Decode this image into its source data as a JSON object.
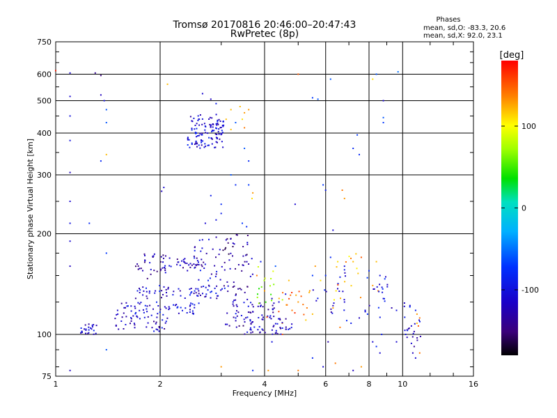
{
  "chart_data": {
    "type": "scatter",
    "title": "Tromsø 20170816 20:46:00–20:47:43",
    "subtitle": "RwPretec (8p)",
    "stats": {
      "heading": "Phases",
      "line1": "mean, sd,O: -83.3, 20.6",
      "line2": "mean, sd,X:  92.0, 23.1"
    },
    "xlabel": "Frequency [MHz]",
    "ylabel": "Stationary phase Virtual Height [km]",
    "x_scale": "log",
    "y_scale": "log",
    "xlim": [
      1,
      16
    ],
    "ylim": [
      75,
      750
    ],
    "x_ticks": [
      1,
      2,
      4,
      6,
      8,
      10,
      16
    ],
    "y_ticks": [
      75,
      100,
      200,
      300,
      400,
      500,
      600,
      750
    ],
    "grid": true,
    "colorbar": {
      "label": "[deg]",
      "range": [
        -180,
        180
      ],
      "ticks": [
        100,
        0,
        -100
      ]
    },
    "series": [
      {
        "name": "echoes",
        "points": [
          [
            1.0,
            615,
            170
          ],
          [
            1.1,
            605,
            -110
          ],
          [
            1.3,
            605,
            -140
          ],
          [
            1.35,
            595,
            -150
          ],
          [
            1.1,
            515,
            -110
          ],
          [
            1.35,
            520,
            -120
          ],
          [
            1.38,
            500,
            -100
          ],
          [
            1.4,
            470,
            -60
          ],
          [
            1.1,
            450,
            -100
          ],
          [
            1.4,
            430,
            -60
          ],
          [
            1.1,
            380,
            -100
          ],
          [
            1.35,
            330,
            -80
          ],
          [
            1.4,
            345,
            120
          ],
          [
            1.1,
            305,
            -120
          ],
          [
            1.1,
            250,
            -110
          ],
          [
            1.1,
            215,
            -100
          ],
          [
            1.1,
            190,
            -110
          ],
          [
            1.1,
            160,
            -120
          ],
          [
            1.25,
            215,
            -80
          ],
          [
            1.4,
            175,
            -70
          ],
          [
            1.4,
            90,
            -60
          ],
          [
            1.1,
            78,
            -120
          ],
          [
            2.1,
            560,
            120
          ],
          [
            2.05,
            275,
            -110
          ],
          [
            2.02,
            268,
            -120
          ],
          [
            2.65,
            525,
            -110
          ],
          [
            2.8,
            505,
            -120
          ],
          [
            2.9,
            490,
            -90
          ],
          [
            3.2,
            470,
            120
          ],
          [
            3.4,
            480,
            120
          ],
          [
            3.5,
            460,
            130
          ],
          [
            3.1,
            440,
            120
          ],
          [
            3.3,
            430,
            -60
          ],
          [
            3.45,
            440,
            110
          ],
          [
            3.6,
            470,
            130
          ],
          [
            3.2,
            410,
            120
          ],
          [
            3.5,
            415,
            140
          ],
          [
            3.5,
            360,
            -60
          ],
          [
            3.6,
            330,
            -80
          ],
          [
            3.7,
            265,
            130
          ],
          [
            3.68,
            255,
            110
          ],
          [
            3.6,
            280,
            -70
          ],
          [
            3.2,
            300,
            -60
          ],
          [
            3.3,
            280,
            -80
          ],
          [
            2.8,
            260,
            -90
          ],
          [
            3.0,
            245,
            -80
          ],
          [
            2.9,
            220,
            -100
          ],
          [
            2.7,
            215,
            -110
          ],
          [
            3.0,
            230,
            -90
          ],
          [
            3.55,
            210,
            -80
          ],
          [
            3.45,
            215,
            -70
          ],
          [
            5.0,
            600,
            150
          ],
          [
            5.7,
            505,
            -60
          ],
          [
            6.2,
            580,
            -60
          ],
          [
            5.5,
            510,
            -70
          ],
          [
            8.4,
            600,
            -60
          ],
          [
            8.2,
            580,
            110
          ],
          [
            8.8,
            500,
            -110
          ],
          [
            8.8,
            445,
            -60
          ],
          [
            8.8,
            430,
            -70
          ],
          [
            7.4,
            395,
            -70
          ],
          [
            7.2,
            360,
            -80
          ],
          [
            7.5,
            345,
            -80
          ],
          [
            9.7,
            610,
            -50
          ],
          [
            5.9,
            280,
            -70
          ],
          [
            6.0,
            270,
            -90
          ],
          [
            4.9,
            245,
            -110
          ],
          [
            6.7,
            270,
            140
          ],
          [
            6.8,
            255,
            130
          ],
          [
            6.3,
            205,
            -110
          ],
          [
            6.2,
            170,
            -80
          ],
          [
            6.5,
            165,
            110
          ],
          [
            6.8,
            160,
            -100
          ],
          [
            7.2,
            165,
            120
          ],
          [
            7.6,
            170,
            150
          ],
          [
            8.0,
            155,
            -80
          ],
          [
            8.4,
            165,
            120
          ],
          [
            8.6,
            150,
            -100
          ],
          [
            8.2,
            140,
            130
          ],
          [
            8.5,
            135,
            140
          ],
          [
            8.8,
            128,
            -110
          ],
          [
            9.3,
            120,
            -130
          ],
          [
            9.6,
            118,
            -100
          ],
          [
            10.5,
            122,
            -110
          ],
          [
            10.9,
            118,
            -90
          ],
          [
            11.0,
            115,
            130
          ],
          [
            11.2,
            112,
            140
          ],
          [
            11.0,
            108,
            120
          ],
          [
            10.6,
            106,
            -110
          ],
          [
            10.4,
            104,
            -120
          ],
          [
            10.8,
            102,
            -130
          ],
          [
            11.1,
            106,
            150
          ],
          [
            10.2,
            100,
            -100
          ],
          [
            10.3,
            98,
            -120
          ],
          [
            10.6,
            94,
            -110
          ],
          [
            10.8,
            92,
            -140
          ],
          [
            10.7,
            88,
            -120
          ],
          [
            10.9,
            85,
            -110
          ],
          [
            11.2,
            88,
            140
          ],
          [
            9.6,
            95,
            -110
          ],
          [
            8.7,
            100,
            -90
          ],
          [
            8.2,
            95,
            -110
          ],
          [
            8.4,
            92,
            -80
          ],
          [
            8.6,
            88,
            -110
          ],
          [
            7.8,
            118,
            -100
          ],
          [
            7.5,
            112,
            -120
          ],
          [
            7.1,
            108,
            -90
          ],
          [
            6.9,
            110,
            -80
          ],
          [
            6.6,
            105,
            140
          ],
          [
            6.3,
            120,
            130
          ],
          [
            6.8,
            125,
            -110
          ],
          [
            6.1,
            95,
            -130
          ],
          [
            5.5,
            85,
            -80
          ],
          [
            5.9,
            80,
            -110
          ],
          [
            6.4,
            82,
            140
          ],
          [
            7.2,
            78,
            -120
          ],
          [
            7.6,
            80,
            130
          ],
          [
            5.0,
            78,
            140
          ],
          [
            4.1,
            78,
            130
          ],
          [
            3.7,
            78,
            -80
          ],
          [
            3.0,
            80,
            130
          ],
          [
            4.5,
            100,
            150
          ],
          [
            4.2,
            95,
            -100
          ],
          [
            4.5,
            108,
            130
          ],
          [
            4.8,
            118,
            140
          ],
          [
            5.0,
            125,
            130
          ],
          [
            5.3,
            120,
            140
          ],
          [
            5.5,
            115,
            120
          ],
          [
            5.1,
            130,
            150
          ],
          [
            5.4,
            135,
            130
          ],
          [
            4.6,
            132,
            -100
          ],
          [
            4.4,
            125,
            -110
          ],
          [
            4.2,
            128,
            -120
          ],
          [
            4.0,
            135,
            130
          ],
          [
            4.7,
            145,
            120
          ],
          [
            5.5,
            150,
            -70
          ],
          [
            5.8,
            145,
            110
          ],
          [
            6.0,
            150,
            -80
          ],
          [
            5.6,
            160,
            130
          ],
          [
            4.3,
            160,
            -60
          ],
          [
            3.8,
            150,
            140
          ],
          [
            3.9,
            165,
            -90
          ]
        ],
        "clusters": [
          [
            2.4,
            3.05,
            360,
            455,
            -110,
            120
          ],
          [
            1.18,
            1.32,
            100,
            108,
            -110,
            24
          ],
          [
            1.48,
            2.1,
            102,
            115,
            -115,
            45
          ],
          [
            1.5,
            2.6,
            115,
            125,
            -110,
            60
          ],
          [
            1.7,
            3.2,
            128,
            140,
            -110,
            60
          ],
          [
            2.0,
            2.7,
            155,
            170,
            -120,
            40
          ],
          [
            1.7,
            2.1,
            145,
            175,
            -130,
            30
          ],
          [
            2.5,
            3.0,
            130,
            200,
            -110,
            40
          ],
          [
            3.0,
            3.7,
            105,
            200,
            -135,
            70
          ],
          [
            3.5,
            4.8,
            100,
            112,
            -115,
            50
          ],
          [
            3.2,
            4.3,
            112,
            125,
            -115,
            40
          ],
          [
            3.8,
            4.6,
            118,
            160,
            70,
            16
          ],
          [
            4.0,
            5.5,
            110,
            135,
            140,
            16
          ],
          [
            5.5,
            7.0,
            115,
            160,
            -110,
            20
          ],
          [
            6.3,
            7.6,
            118,
            175,
            130,
            14
          ],
          [
            7.8,
            9.2,
            112,
            155,
            -100,
            20
          ],
          [
            10.0,
            11.4,
            95,
            130,
            -110,
            16
          ]
        ]
      }
    ]
  }
}
